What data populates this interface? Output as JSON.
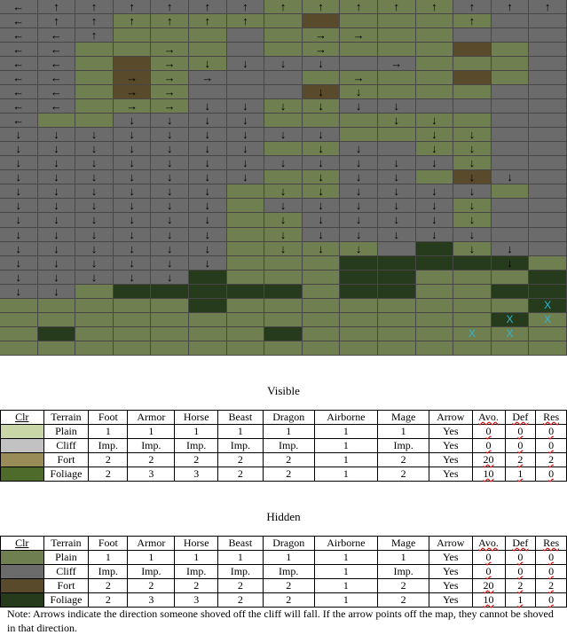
{
  "colors": {
    "P": "#6f7f4f",
    "C": "#6b6b6b",
    "F": "#5a4a2c",
    "D": "#263a1c",
    "vis_plain": "#c8d6a8",
    "vis_cliff": "#c2c2c2",
    "vis_fort": "#9a8c58",
    "vis_foliage": "#4e6b2c",
    "hid_plain": "#6f7f4f",
    "hid_cliff": "#6b6b6b",
    "hid_fort": "#5a4a2c",
    "hid_foliage": "#263a1c"
  },
  "map": {
    "terrain": [
      "CCCCCCCPPPPPCCC",
      "CCCPPPPPFPPPPCC",
      "CCCPPPCPPPPPCCC",
      "CCPPPPCPPPPPFPC",
      "CCPFPPCCCCCPPPC",
      "CCPFPCCCPPPPFPC",
      "CCPFPCCCFPPPPCC",
      "CCPPPCCPPCCCCCC",
      "CPPCCCCPPPPPPCC",
      "CCCCCCCCCPPPPCC",
      "CCCCCCCPPCCPPCC",
      "CCCCCCCCCCCCPCC",
      "CCCCCCCPPCCPFCC",
      "CCCCCCPPPCCCCPC",
      "CCCCCCPCCCCCPCC",
      "CCCCCCPPCCCCPCC",
      "CCCCCCPPCCCCCCC",
      "CCCCCCPPPPCDPCC",
      "CCCCCCPPPDDDDDP",
      "CCCCCDPPPDDPPPD",
      "CCPDDDDDPDDPPDD",
      "PPPPPDPPPPPPPPD",
      "PPPPPPPPPPPPPDP",
      "PDPPPPPDPPPPPPP",
      "PPPPPPPPPPPPPPP"
    ],
    "arrows": [
      "←↑↑↑↑↑↑↑↑↑↑↑↑↑↑",
      "←↑↑↑↑↑↑          ↑",
      "←←↑          →→",
      "←←    →      →",
      "←←    →↓↓↓↓  →",
      "←←  →→→      →",
      "←←  →→      ↓↓",
      "←←  →→↓↓↓↓↓↓",
      "←    ↓↓↓↓      ↓↓",
      "↓↓↓↓↓↓↓↓↓    ↓↓",
      "↓↓↓↓↓↓↓  ↓↓  ↓↓",
      "↓↓↓↓↓↓↓↓↓↓↓↓↓",
      "↓↓↓↓↓↓↓  ↓↓↓  ↓↓",
      "↓↓↓↓↓↓  ↓↓↓↓↓↓",
      "↓↓↓↓↓↓  ↓↓↓↓↓↓",
      "↓↓↓↓↓↓  ↓↓↓↓↓↓",
      "↓↓↓↓↓↓  ↓↓↓↓↓↓",
      "↓↓↓↓↓↓  ↓↓↓    ↓↓",
      "↓↓↓↓↓↓              ↓",
      "↓↓↓↓↓",
      "↓↓",
      "",
      "",
      "",
      ""
    ],
    "x_cells": [
      [
        21,
        14
      ],
      [
        22,
        13
      ],
      [
        22,
        14
      ],
      [
        23,
        12
      ],
      [
        23,
        13
      ]
    ],
    "x_label": "X"
  },
  "visible": {
    "title": "Visible",
    "headers": [
      "Clr",
      "Terrain",
      "Foot",
      "Armor",
      "Horse",
      "Beast",
      "Dragon",
      "Airborne",
      "Mage",
      "Arrow",
      "Avo.",
      "Def",
      "Res"
    ],
    "rows": [
      {
        "swatch": "vis_plain",
        "cells": [
          "Plain",
          "1",
          "1",
          "1",
          "1",
          "1",
          "1",
          "1",
          "Yes",
          "0",
          "0",
          "0"
        ]
      },
      {
        "swatch": "vis_cliff",
        "cells": [
          "Cliff",
          "Imp.",
          "Imp.",
          "Imp.",
          "Imp.",
          "Imp.",
          "1",
          "Imp.",
          "Yes",
          "0",
          "0",
          "0"
        ]
      },
      {
        "swatch": "vis_fort",
        "cells": [
          "Fort",
          "2",
          "2",
          "2",
          "2",
          "2",
          "1",
          "2",
          "Yes",
          "20",
          "2",
          "2"
        ]
      },
      {
        "swatch": "vis_foliage",
        "cells": [
          "Foliage",
          "2",
          "3",
          "3",
          "2",
          "2",
          "1",
          "2",
          "Yes",
          "10",
          "1",
          "0"
        ]
      }
    ]
  },
  "hidden": {
    "title": "Hidden",
    "headers": [
      "Clr",
      "Terrain",
      "Foot",
      "Armor",
      "Horse",
      "Beast",
      "Dragon",
      "Airborne",
      "Mage",
      "Arrow",
      "Avo.",
      "Def",
      "Res"
    ],
    "rows": [
      {
        "swatch": "hid_plain",
        "cells": [
          "Plain",
          "1",
          "1",
          "1",
          "1",
          "1",
          "1",
          "1",
          "Yes",
          "0",
          "0",
          "0"
        ]
      },
      {
        "swatch": "hid_cliff",
        "cells": [
          "Cliff",
          "Imp.",
          "Imp.",
          "Imp.",
          "Imp.",
          "Imp.",
          "1",
          "Imp.",
          "Yes",
          "0",
          "0",
          "0"
        ]
      },
      {
        "swatch": "hid_fort",
        "cells": [
          "Fort",
          "2",
          "2",
          "2",
          "2",
          "2",
          "1",
          "2",
          "Yes",
          "20",
          "2",
          "2"
        ]
      },
      {
        "swatch": "hid_foliage",
        "cells": [
          "Foliage",
          "2",
          "3",
          "3",
          "2",
          "2",
          "1",
          "2",
          "Yes",
          "10",
          "1",
          "0"
        ]
      }
    ]
  },
  "note": "Note: Arrows indicate the direction someone shoved off the cliff will fall.  If the arrow points off the map, they cannot be shoved in that direction."
}
